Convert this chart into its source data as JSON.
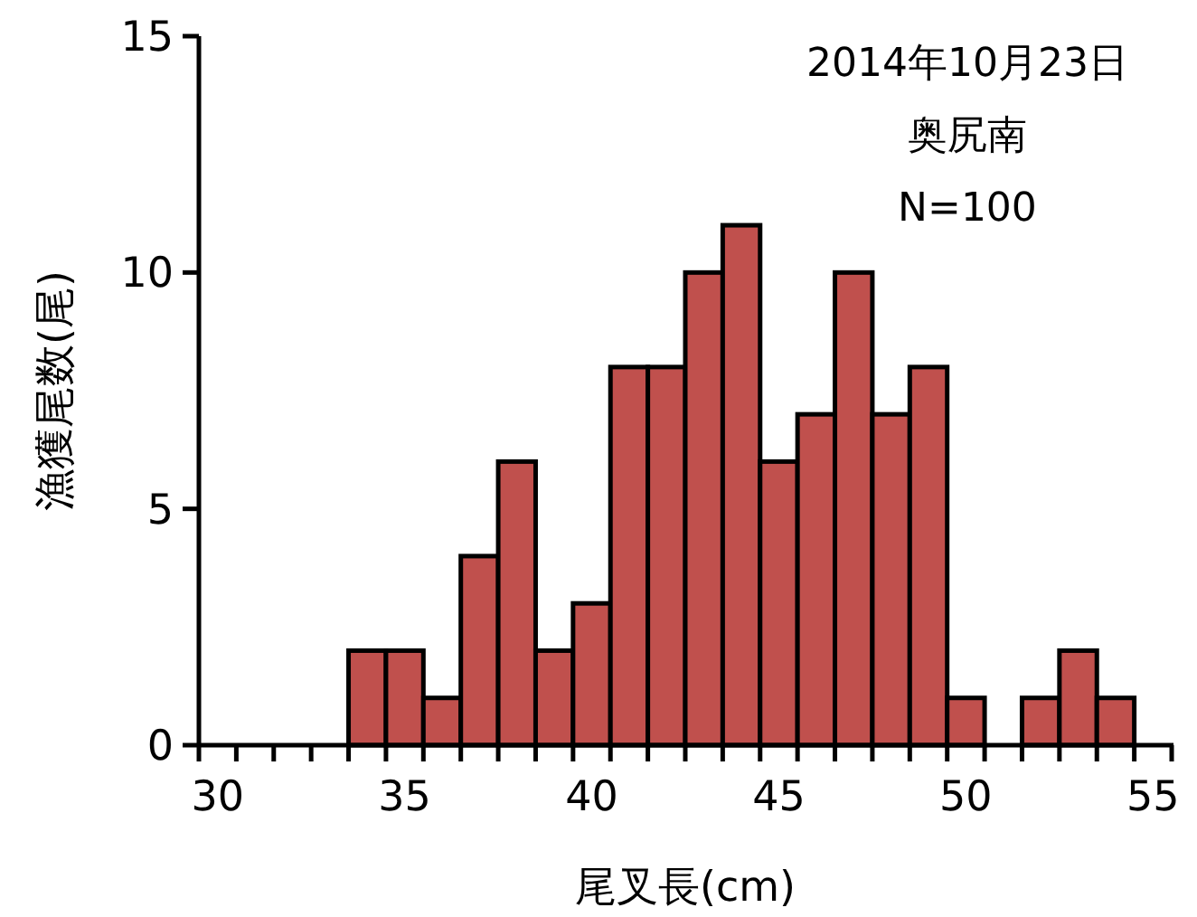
{
  "chart_data": {
    "type": "bar",
    "title": "2014年10月23日",
    "subtitle": "奥尻南",
    "annotations": [
      "N=100"
    ],
    "xlabel": "尾叉長(cm)",
    "ylabel": "漁獲尾数(尾)",
    "categories": [
      "30",
      null,
      null,
      null,
      null,
      "35",
      null,
      null,
      null,
      null,
      "40",
      null,
      null,
      null,
      null,
      "45",
      null,
      null,
      null,
      null,
      "50",
      null,
      null,
      null,
      null,
      "55"
    ],
    "values": [
      0,
      0,
      0,
      0,
      2,
      2,
      1,
      4,
      6,
      2,
      3,
      8,
      8,
      10,
      11,
      6,
      7,
      10,
      7,
      8,
      1,
      0,
      1,
      2,
      1,
      0
    ],
    "color": "#c0504d",
    "ylim": [
      0,
      15
    ],
    "yticks": [
      0,
      5,
      10,
      15
    ],
    "grid": false
  }
}
